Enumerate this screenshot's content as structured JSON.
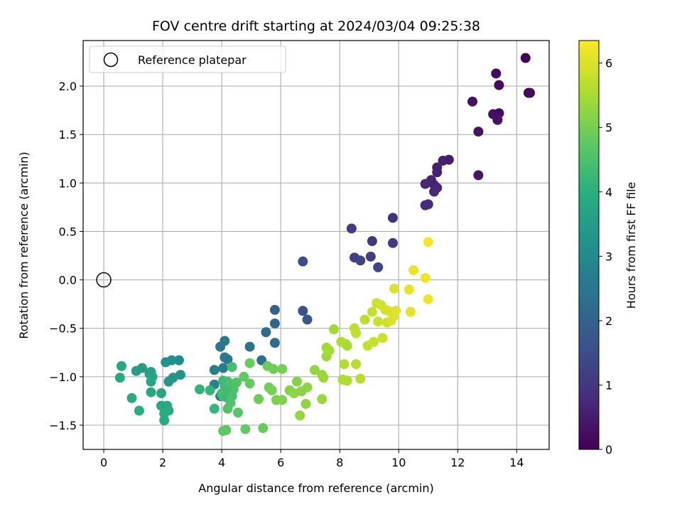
{
  "chart_data": {
    "type": "scatter",
    "title": "FOV centre drift starting at 2024/03/04 09:25:38",
    "xlabel": "Angular distance from reference (arcmin)",
    "ylabel": "Rotation from reference (arcmin)",
    "xlim": [
      -0.7,
      15.1
    ],
    "ylim": [
      -1.75,
      2.47
    ],
    "xticks": [
      0,
      2,
      4,
      6,
      8,
      10,
      12,
      14
    ],
    "yticks": [
      -1.5,
      -1.0,
      -0.5,
      0.0,
      0.5,
      1.0,
      1.5,
      2.0
    ],
    "xtick_labels": [
      "0",
      "2",
      "4",
      "6",
      "8",
      "10",
      "12",
      "14"
    ],
    "ytick_labels": [
      "−1.5",
      "−1.0",
      "−0.5",
      "0.0",
      "0.5",
      "1.0",
      "1.5",
      "2.0"
    ],
    "grid": true,
    "legend": {
      "position": "top-left",
      "entries": [
        "Reference platepar"
      ]
    },
    "reference_point": {
      "x": 0,
      "y": 0
    },
    "colorbar": {
      "label": "Hours from first FF file",
      "colormap": "viridis",
      "range": [
        0,
        6.35
      ],
      "ticks": [
        0,
        1,
        2,
        3,
        4,
        5,
        6
      ],
      "tick_labels": [
        "0",
        "1",
        "2",
        "3",
        "4",
        "5",
        "6"
      ]
    },
    "points": [
      [
        14.3,
        2.29,
        0.05
      ],
      [
        13.3,
        2.13,
        0.15
      ],
      [
        14.4,
        1.93,
        0.08
      ],
      [
        14.45,
        1.93,
        0.1
      ],
      [
        13.4,
        2.01,
        0.2
      ],
      [
        12.5,
        1.84,
        0.3
      ],
      [
        13.2,
        1.71,
        0.25
      ],
      [
        13.4,
        1.72,
        0.22
      ],
      [
        13.35,
        1.65,
        0.28
      ],
      [
        12.7,
        1.53,
        0.35
      ],
      [
        12.7,
        1.08,
        0.4
      ],
      [
        11.7,
        1.24,
        0.5
      ],
      [
        11.5,
        1.23,
        0.55
      ],
      [
        11.3,
        1.16,
        0.6
      ],
      [
        11.3,
        1.11,
        0.58
      ],
      [
        11.1,
        1.03,
        0.65
      ],
      [
        10.9,
        0.99,
        0.7
      ],
      [
        11.2,
        0.98,
        0.62
      ],
      [
        11.3,
        0.95,
        0.68
      ],
      [
        11.2,
        0.91,
        0.72
      ],
      [
        11.0,
        0.78,
        0.75
      ],
      [
        10.9,
        0.77,
        0.8
      ],
      [
        9.8,
        0.64,
        0.9
      ],
      [
        9.1,
        0.4,
        1.0
      ],
      [
        9.8,
        0.38,
        1.05
      ],
      [
        8.4,
        0.53,
        1.1
      ],
      [
        8.5,
        0.23,
        1.2
      ],
      [
        8.7,
        0.2,
        1.25
      ],
      [
        9.05,
        0.24,
        1.15
      ],
      [
        9.3,
        0.13,
        1.3
      ],
      [
        6.75,
        0.19,
        1.5
      ],
      [
        6.75,
        -0.32,
        1.6
      ],
      [
        6.9,
        -0.41,
        1.7
      ],
      [
        5.8,
        -0.31,
        2.0
      ],
      [
        5.8,
        -0.45,
        2.1
      ],
      [
        5.5,
        -0.54,
        2.2
      ],
      [
        5.8,
        -0.65,
        2.25
      ],
      [
        4.95,
        -0.69,
        2.4
      ],
      [
        5.35,
        -0.83,
        2.35
      ],
      [
        4.1,
        -0.63,
        2.5
      ],
      [
        3.95,
        -0.69,
        2.45
      ],
      [
        4.1,
        -0.8,
        2.6
      ],
      [
        4.2,
        -0.82,
        2.55
      ],
      [
        3.75,
        -0.93,
        2.7
      ],
      [
        4.05,
        -0.91,
        2.65
      ],
      [
        3.75,
        -1.08,
        2.8
      ],
      [
        3.95,
        -1.2,
        2.75
      ],
      [
        2.55,
        -0.83,
        3.1
      ],
      [
        2.3,
        -0.83,
        3.15
      ],
      [
        2.1,
        -0.85,
        3.2
      ],
      [
        2.6,
        -0.98,
        3.25
      ],
      [
        2.35,
        -1.01,
        3.3
      ],
      [
        2.2,
        -1.05,
        3.35
      ],
      [
        1.3,
        -0.91,
        3.5
      ],
      [
        1.1,
        -0.94,
        3.55
      ],
      [
        1.55,
        -0.97,
        3.6
      ],
      [
        1.6,
        -0.95,
        3.65
      ],
      [
        1.65,
        -1.0,
        3.7
      ],
      [
        1.6,
        -1.05,
        3.75
      ],
      [
        0.6,
        -0.89,
        3.8
      ],
      [
        0.55,
        -1.01,
        3.85
      ],
      [
        0.95,
        -1.22,
        3.9
      ],
      [
        1.2,
        -1.35,
        3.95
      ],
      [
        1.6,
        -1.16,
        3.8
      ],
      [
        1.95,
        -1.17,
        3.7
      ],
      [
        1.95,
        -1.3,
        3.85
      ],
      [
        2.15,
        -1.3,
        3.75
      ],
      [
        2.2,
        -1.35,
        3.9
      ],
      [
        2.05,
        -1.38,
        3.95
      ],
      [
        2.05,
        -1.45,
        3.9
      ],
      [
        3.25,
        -1.13,
        4.1
      ],
      [
        3.6,
        -1.14,
        4.15
      ],
      [
        3.75,
        -1.33,
        4.2
      ],
      [
        4.05,
        -1.04,
        4.3
      ],
      [
        4.1,
        -1.1,
        4.35
      ],
      [
        4.2,
        -1.05,
        4.4
      ],
      [
        4.35,
        -0.9,
        4.45
      ],
      [
        4.3,
        -1.07,
        4.5
      ],
      [
        4.5,
        -1.06,
        4.55
      ],
      [
        4.4,
        -1.13,
        4.5
      ],
      [
        4.2,
        -1.16,
        4.35
      ],
      [
        4.0,
        -1.17,
        4.4
      ],
      [
        4.05,
        -1.2,
        4.45
      ],
      [
        4.15,
        -1.21,
        4.3
      ],
      [
        4.35,
        -1.2,
        4.5
      ],
      [
        4.3,
        -1.27,
        4.55
      ],
      [
        4.2,
        -1.33,
        4.6
      ],
      [
        4.55,
        -1.37,
        4.65
      ],
      [
        4.05,
        -1.56,
        4.7
      ],
      [
        4.15,
        -1.55,
        4.75
      ],
      [
        4.8,
        -1.54,
        4.8
      ],
      [
        5.4,
        -1.53,
        4.85
      ],
      [
        4.95,
        -0.86,
        4.85
      ],
      [
        4.95,
        -1.07,
        4.8
      ],
      [
        4.75,
        -1.0,
        4.75
      ],
      [
        5.25,
        -1.23,
        4.9
      ],
      [
        5.6,
        -1.11,
        4.95
      ],
      [
        5.7,
        -1.14,
        5.0
      ],
      [
        5.55,
        -0.89,
        4.9
      ],
      [
        5.75,
        -0.92,
        4.95
      ],
      [
        6.05,
        -0.92,
        5.0
      ],
      [
        5.85,
        -1.24,
        5.05
      ],
      [
        6.05,
        -1.24,
        5.1
      ],
      [
        6.3,
        -1.14,
        5.15
      ],
      [
        6.45,
        -1.17,
        5.2
      ],
      [
        6.55,
        -1.05,
        5.15
      ],
      [
        6.7,
        -1.15,
        5.2
      ],
      [
        6.85,
        -1.28,
        5.25
      ],
      [
        6.65,
        -1.4,
        5.3
      ],
      [
        6.9,
        -1.11,
        5.25
      ],
      [
        7.15,
        -0.93,
        5.3
      ],
      [
        7.4,
        -0.98,
        5.35
      ],
      [
        7.45,
        -1.01,
        5.4
      ],
      [
        7.4,
        -1.23,
        5.35
      ],
      [
        7.55,
        -0.79,
        5.4
      ],
      [
        7.55,
        -0.7,
        5.45
      ],
      [
        7.65,
        -0.73,
        5.5
      ],
      [
        7.8,
        -0.51,
        5.45
      ],
      [
        8.05,
        -0.64,
        5.55
      ],
      [
        8.2,
        -0.66,
        5.6
      ],
      [
        8.25,
        -0.68,
        5.5
      ],
      [
        8.15,
        -0.87,
        5.6
      ],
      [
        8.55,
        -0.87,
        5.65
      ],
      [
        8.1,
        -1.03,
        5.55
      ],
      [
        8.25,
        -1.04,
        5.6
      ],
      [
        8.7,
        -1.02,
        5.65
      ],
      [
        8.5,
        -0.5,
        5.7
      ],
      [
        8.55,
        -0.55,
        5.75
      ],
      [
        8.85,
        -0.41,
        5.7
      ],
      [
        8.95,
        -0.68,
        5.75
      ],
      [
        9.15,
        -0.64,
        5.8
      ],
      [
        9.1,
        -0.33,
        5.8
      ],
      [
        9.25,
        -0.24,
        5.85
      ],
      [
        9.3,
        -0.43,
        5.85
      ],
      [
        9.4,
        -0.26,
        5.9
      ],
      [
        9.45,
        -0.6,
        5.85
      ],
      [
        9.55,
        -0.31,
        5.9
      ],
      [
        9.65,
        -0.32,
        5.95
      ],
      [
        9.6,
        -0.44,
        5.9
      ],
      [
        9.75,
        -0.42,
        5.95
      ],
      [
        9.85,
        -0.37,
        6.0
      ],
      [
        9.85,
        -0.09,
        6.0
      ],
      [
        9.9,
        -0.32,
        6.05
      ],
      [
        10.35,
        -0.1,
        6.1
      ],
      [
        10.4,
        -0.33,
        6.1
      ],
      [
        10.5,
        0.1,
        6.15
      ],
      [
        10.9,
        0.02,
        6.2
      ],
      [
        11.0,
        -0.2,
        6.2
      ],
      [
        11.0,
        0.39,
        6.3
      ]
    ]
  }
}
